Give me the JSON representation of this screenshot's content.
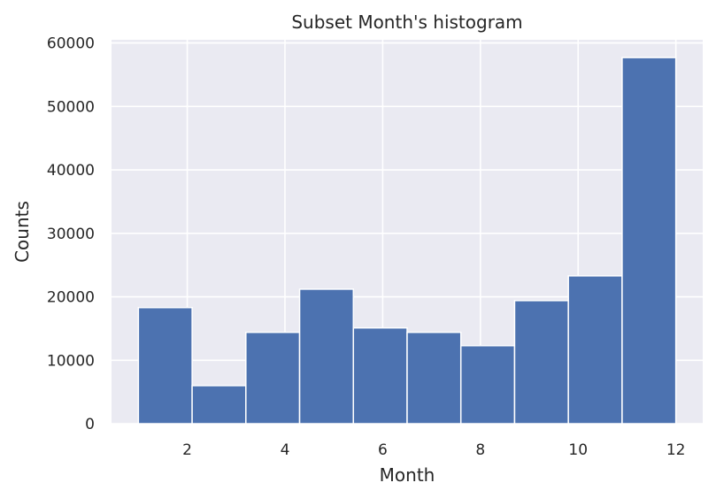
{
  "chart_data": {
    "type": "bar",
    "title": "Subset Month's histogram",
    "xlabel": "Month",
    "ylabel": "Counts",
    "bin_edges": [
      1.0,
      2.1,
      3.2,
      4.3,
      5.4,
      6.5,
      7.6,
      8.7,
      9.8,
      10.9,
      12.0
    ],
    "values": [
      18300,
      6000,
      14400,
      21200,
      15100,
      14400,
      12300,
      19400,
      23300,
      57700
    ],
    "xlim": [
      0.45,
      12.55
    ],
    "ylim": [
      0,
      60500
    ],
    "xticks": [
      2,
      4,
      6,
      8,
      10,
      12
    ],
    "yticks": [
      0,
      10000,
      20000,
      30000,
      40000,
      50000,
      60000
    ],
    "grid": true,
    "colors": {
      "bar": "#4c72b0",
      "background": "#eaeaf2",
      "grid": "#ffffff"
    }
  }
}
